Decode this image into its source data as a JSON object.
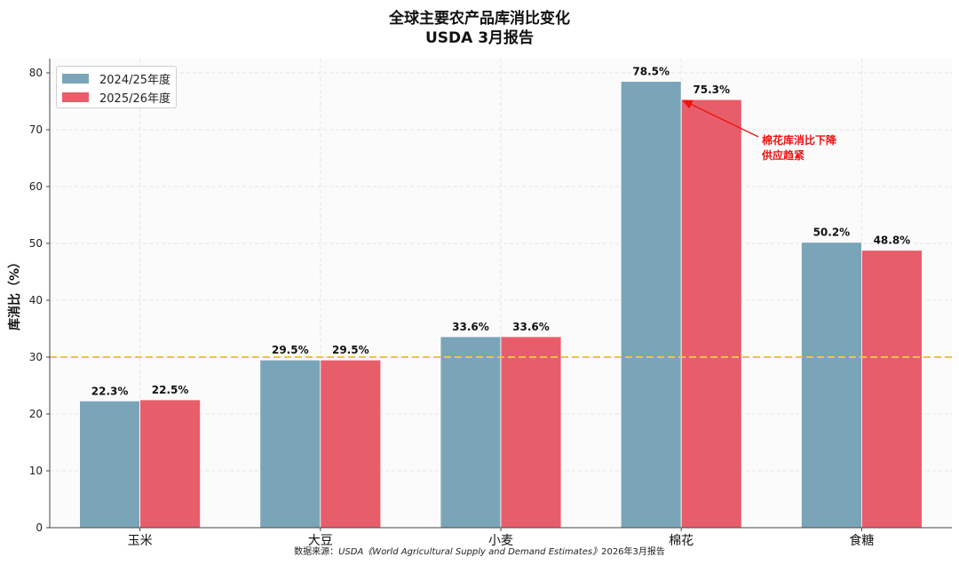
{
  "chart_data": {
    "type": "bar",
    "title": "全球主要农产品库消比变化",
    "subtitle": "USDA 3月报告",
    "ylabel": "库消比（%）",
    "xlabel": "",
    "ylim": [
      0,
      82.5
    ],
    "yticks": [
      "0",
      "10",
      "20",
      "30",
      "40",
      "50",
      "60",
      "70",
      "80"
    ],
    "categories": [
      "玉米",
      "大豆",
      "小麦",
      "棉花",
      "食糖"
    ],
    "series": [
      {
        "name": "2024/25年度",
        "color": "#7aa5b8",
        "values": [
          22.3,
          29.5,
          33.6,
          78.5,
          50.2
        ],
        "labels": [
          "22.3%",
          "29.5%",
          "33.6%",
          "78.5%",
          "50.2%"
        ]
      },
      {
        "name": "2025/26年度",
        "color": "#e85d6a",
        "values": [
          22.5,
          29.5,
          33.6,
          75.3,
          48.8
        ],
        "labels": [
          "22.5%",
          "29.5%",
          "33.6%",
          "75.3%",
          "48.8%"
        ]
      }
    ],
    "reference_line": {
      "value": 30,
      "color": "#f0c050",
      "style": "dashed"
    },
    "annotation": {
      "line1": "棉花库消比下降",
      "line2": "供应趋紧",
      "color": "#ee1111",
      "category_index": 3,
      "series_index": 1
    },
    "legend_position": "top-left",
    "grid": true
  },
  "source": {
    "prefix": "数据来源：",
    "italic": "USDA《World Agricultural Supply and Demand Estimates》",
    "suffix": "2026年3月报告"
  }
}
